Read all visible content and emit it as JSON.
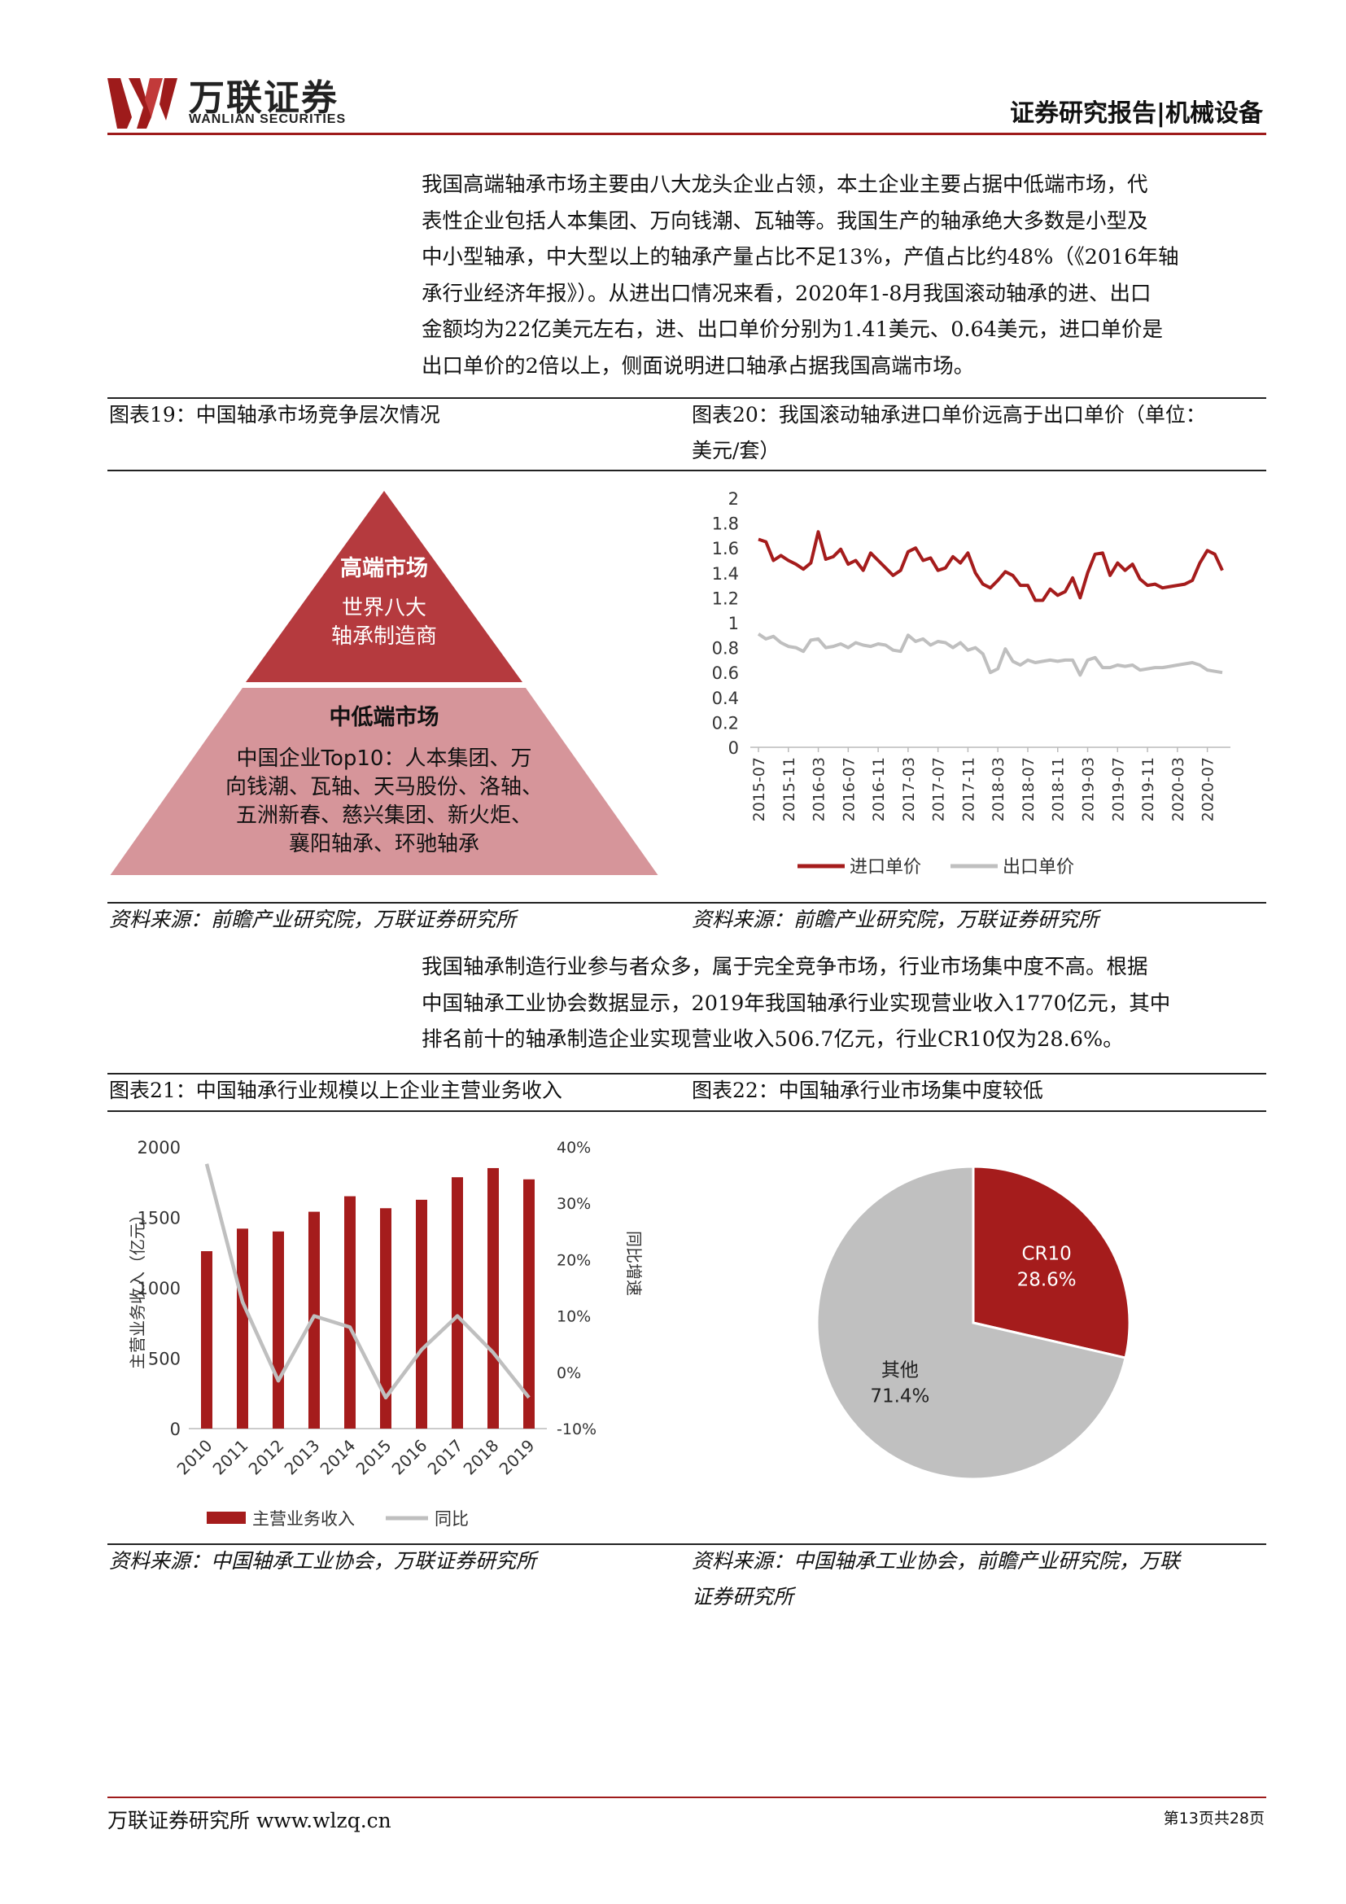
{
  "header": {
    "logo_cn": "万联证券",
    "logo_en": "WANLIAN SECURITIES",
    "report_type": "证券研究报告|机械设备",
    "brand_color": "#9e1b1b"
  },
  "paragraph1": [
    "我国高端轴承市场主要由八大龙头企业占领，本土企业主要占据中低端市场，代",
    "表性企业包括人本集团、万向钱潮、瓦轴等。我国生产的轴承绝大多数是小型及",
    "中小型轴承，中大型以上的轴承产量占比不足13%，产值占比约48%（《2016年轴",
    "承行业经济年报》）。从进出口情况来看，2020年1-8月我国滚动轴承的进、出口",
    "金额均为22亿美元左右，进、出口单价分别为1.41美元、0.64美元，进口单价是",
    "出口单价的2倍以上，侧面说明进口轴承占据我国高端市场。"
  ],
  "fig19": {
    "caption": "图表19：中国轴承市场竞争层次情况",
    "top_title": "高端市场",
    "top_lines": [
      "世界八大",
      "轴承制造商"
    ],
    "bottom_title": "中低端市场",
    "bottom_lines": [
      "中国企业Top10：人本集团、万",
      "向钱潮、瓦轴、天马股份、洛轴、",
      "五洲新春、慈兴集团、新火炬、",
      "襄阳轴承、环驰轴承"
    ],
    "source": "资料来源：前瞻产业研究院，万联证券研究所",
    "colors": {
      "top": "#b53a3e",
      "bottom": "#d6959a"
    }
  },
  "fig20": {
    "caption_line1": "图表20：我国滚动轴承进口单价远高于出口单价（单位：",
    "caption_line2": "美元/套）",
    "source": "资料来源：前瞻产业研究院，万联证券研究所"
  },
  "paragraph2": [
    "我国轴承制造行业参与者众多，属于完全竞争市场，行业市场集中度不高。根据",
    "中国轴承工业协会数据显示，2019年我国轴承行业实现营业收入1770亿元，其中",
    "排名前十的轴承制造企业实现营业收入506.7亿元，行业CR10仅为28.6%。"
  ],
  "fig21": {
    "caption": "图表21：中国轴承行业规模以上企业主营业务收入",
    "source": "资料来源：中国轴承工业协会，万联证券研究所"
  },
  "fig22": {
    "caption": "图表22：中国轴承行业市场集中度较低",
    "source_line1": "资料来源：中国轴承工业协会，前瞻产业研究院，万联",
    "source_line2": "证券研究所"
  },
  "footer": {
    "left": "万联证券研究所 www.wlzq.cn",
    "right": "第13页共28页"
  },
  "chart_data": [
    {
      "type": "line",
      "x_tick_labels": [
        "2015-07",
        "2015-11",
        "2016-03",
        "2016-07",
        "2016-11",
        "2017-03",
        "2017-07",
        "2017-11",
        "2018-03",
        "2018-07",
        "2018-11",
        "2019-03",
        "2019-07",
        "2019-11",
        "2020-03",
        "2020-07"
      ],
      "ylim": [
        0,
        2
      ],
      "y_ticks": [
        "0",
        "0.2",
        "0.4",
        "0.6",
        "0.8",
        "1",
        "1.2",
        "1.4",
        "1.6",
        "1.8",
        "2"
      ],
      "legend_position": "bottom",
      "series": [
        {
          "name": "进口单价",
          "color": "#a51c1c",
          "values": [
            1.67,
            1.65,
            1.5,
            1.54,
            1.5,
            1.47,
            1.43,
            1.48,
            1.73,
            1.51,
            1.53,
            1.59,
            1.47,
            1.5,
            1.42,
            1.56,
            1.5,
            1.44,
            1.38,
            1.42,
            1.57,
            1.6,
            1.5,
            1.52,
            1.42,
            1.44,
            1.53,
            1.48,
            1.56,
            1.4,
            1.31,
            1.28,
            1.34,
            1.41,
            1.38,
            1.3,
            1.3,
            1.18,
            1.18,
            1.27,
            1.22,
            1.25,
            1.36,
            1.2,
            1.4,
            1.55,
            1.56,
            1.38,
            1.48,
            1.42,
            1.47,
            1.35,
            1.3,
            1.31,
            1.28,
            1.29,
            1.3,
            1.31,
            1.34,
            1.48,
            1.58,
            1.55,
            1.42
          ]
        },
        {
          "name": "出口单价",
          "color": "#bfbfbf",
          "values": [
            0.91,
            0.87,
            0.89,
            0.84,
            0.81,
            0.8,
            0.77,
            0.86,
            0.87,
            0.8,
            0.81,
            0.83,
            0.8,
            0.84,
            0.82,
            0.81,
            0.83,
            0.82,
            0.78,
            0.77,
            0.9,
            0.85,
            0.87,
            0.82,
            0.85,
            0.84,
            0.8,
            0.84,
            0.78,
            0.8,
            0.75,
            0.6,
            0.63,
            0.79,
            0.69,
            0.66,
            0.7,
            0.68,
            0.69,
            0.7,
            0.69,
            0.7,
            0.7,
            0.58,
            0.7,
            0.72,
            0.64,
            0.64,
            0.66,
            0.65,
            0.66,
            0.62,
            0.63,
            0.64,
            0.64,
            0.65,
            0.66,
            0.67,
            0.68,
            0.66,
            0.62,
            0.61,
            0.6
          ]
        }
      ]
    },
    {
      "type": "bar",
      "categories": [
        "2010",
        "2011",
        "2012",
        "2013",
        "2014",
        "2015",
        "2016",
        "2017",
        "2018",
        "2019"
      ],
      "ylabel": "主营业务收入（亿元）",
      "y2label": "同比增速",
      "ylim": [
        0,
        2000
      ],
      "y_ticks": [
        "0",
        "500",
        "1000",
        "1500",
        "2000"
      ],
      "y2lim": [
        -10,
        40
      ],
      "y2_ticks": [
        "-10%",
        "0%",
        "10%",
        "20%",
        "30%",
        "40%"
      ],
      "legend_position": "bottom",
      "series": [
        {
          "name": "主营业务收入",
          "color": "#a51c1c",
          "values": [
            1260,
            1420,
            1400,
            1540,
            1650,
            1565,
            1625,
            1785,
            1850,
            1770
          ]
        },
        {
          "name": "同比",
          "type": "line",
          "color": "#bfbfbf",
          "values": [
            37,
            12.5,
            -1.5,
            10,
            8,
            -4.5,
            4,
            10,
            3.5,
            -4.5
          ]
        }
      ]
    },
    {
      "type": "pie",
      "labels": [
        "CR10",
        "其他"
      ],
      "values": [
        28.6,
        71.4
      ],
      "value_labels": [
        "28.6%",
        "71.4%"
      ],
      "colors": [
        "#a51c1c",
        "#c0c0c0"
      ]
    }
  ]
}
